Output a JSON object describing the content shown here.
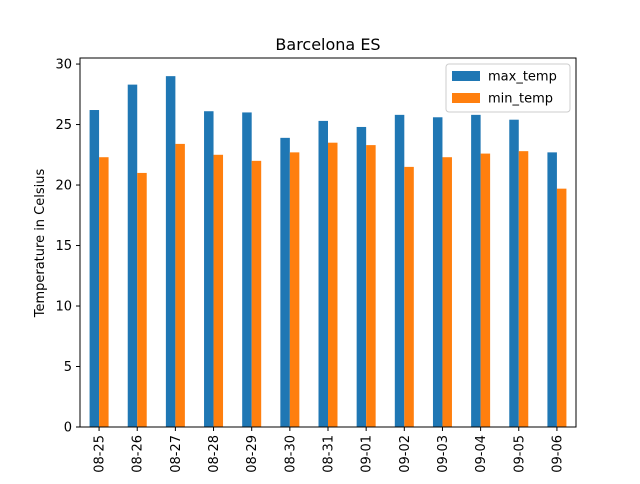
{
  "chart_data": {
    "type": "bar",
    "title": "Barcelona ES",
    "xlabel": "",
    "ylabel": "Temperature in Celsius",
    "categories": [
      "08-25",
      "08-26",
      "08-27",
      "08-28",
      "08-29",
      "08-30",
      "08-31",
      "09-01",
      "09-02",
      "09-03",
      "09-04",
      "09-05",
      "09-06"
    ],
    "series": [
      {
        "name": "max_temp",
        "color": "#1f77b4",
        "values": [
          26.2,
          28.3,
          29.0,
          26.1,
          26.0,
          23.9,
          25.3,
          24.8,
          25.8,
          25.6,
          25.8,
          25.4,
          22.7
        ]
      },
      {
        "name": "min_temp",
        "color": "#ff7f0e",
        "values": [
          22.3,
          21.0,
          23.4,
          22.5,
          22.0,
          22.7,
          23.5,
          23.3,
          21.5,
          22.3,
          22.6,
          22.8,
          19.7
        ]
      }
    ],
    "ylim": [
      0,
      30.5
    ],
    "yticks": [
      0,
      5,
      10,
      15,
      20,
      25,
      30
    ],
    "grid": false,
    "legend": "top-right"
  }
}
